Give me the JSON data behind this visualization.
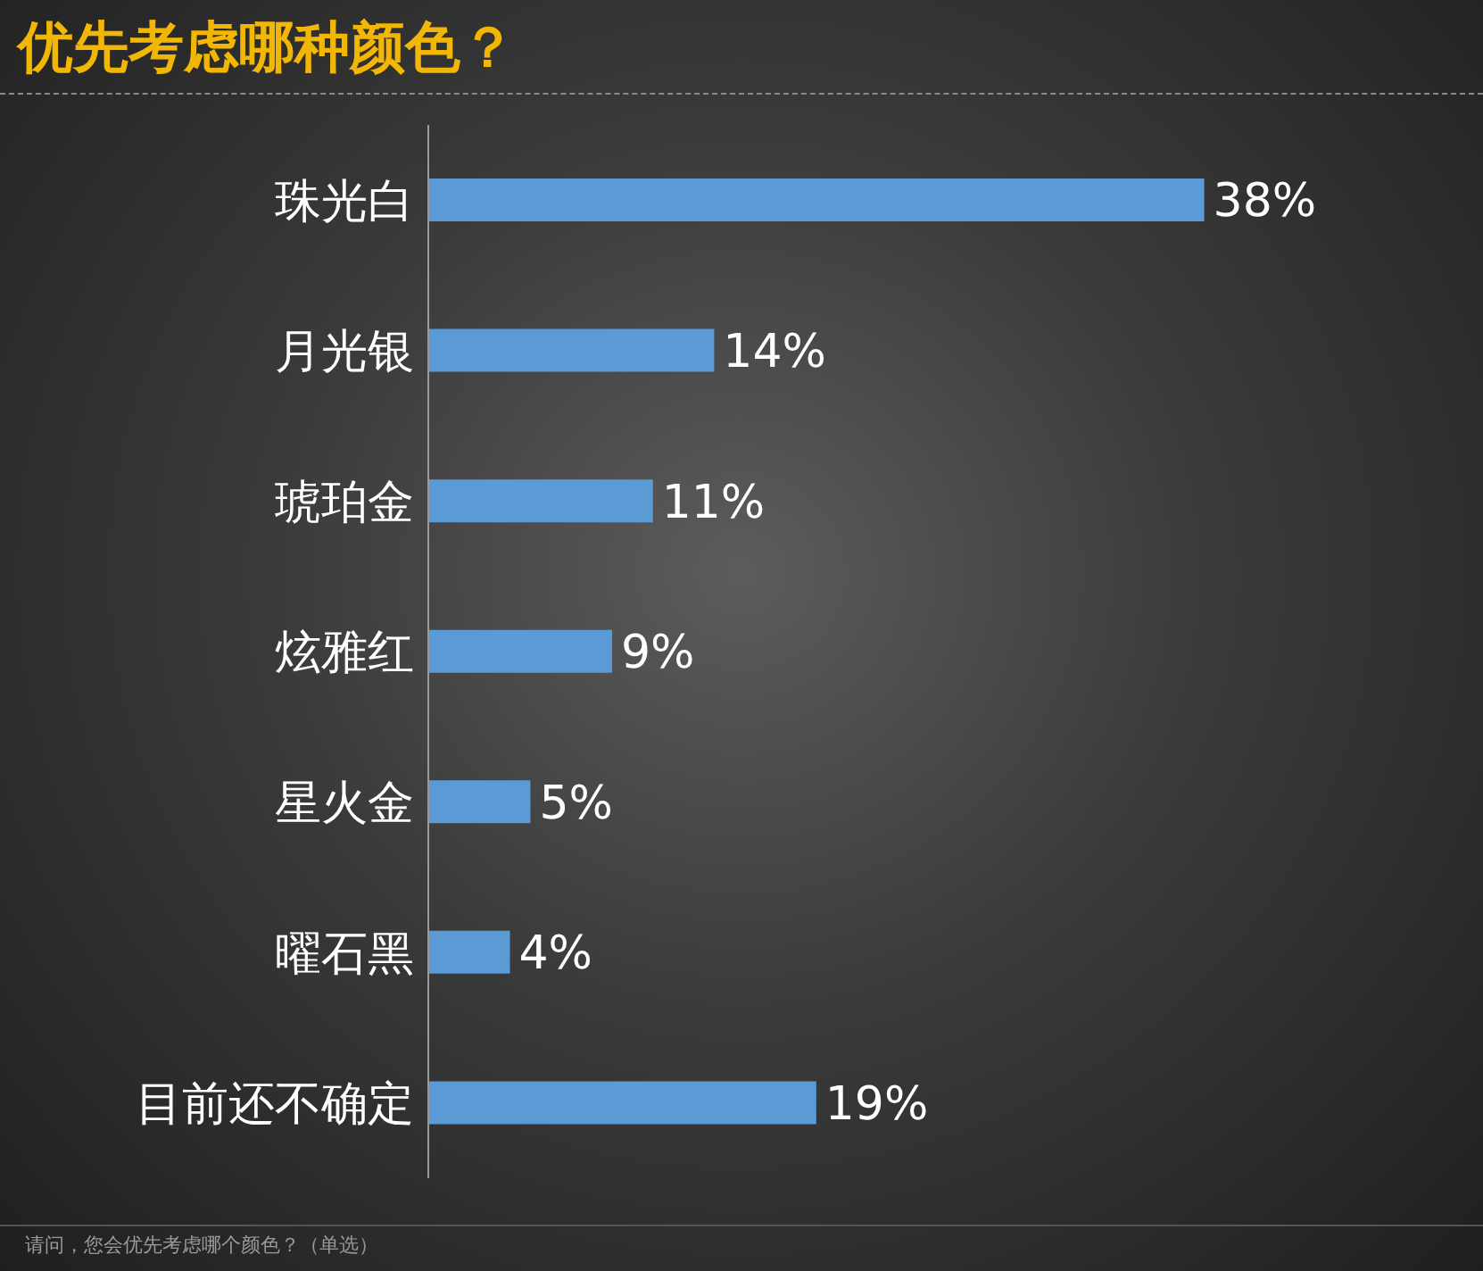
{
  "chart_data": {
    "type": "bar",
    "orientation": "horizontal",
    "title": "优先考虑哪种颜色？",
    "categories": [
      "珠光白",
      "月光银",
      "琥珀金",
      "炫雅红",
      "星火金",
      "曜石黑",
      "目前还不确定"
    ],
    "values": [
      38,
      14,
      11,
      9,
      5,
      4,
      19
    ],
    "value_labels": [
      "38%",
      "14%",
      "11%",
      "9%",
      "5%",
      "4%",
      "19%"
    ],
    "color": "#5b9bd5",
    "tick_labels": "y",
    "grid": false,
    "legend": false,
    "annotations": [
      "请问，您会优先考虑哪个颜色？（单选）"
    ]
  }
}
